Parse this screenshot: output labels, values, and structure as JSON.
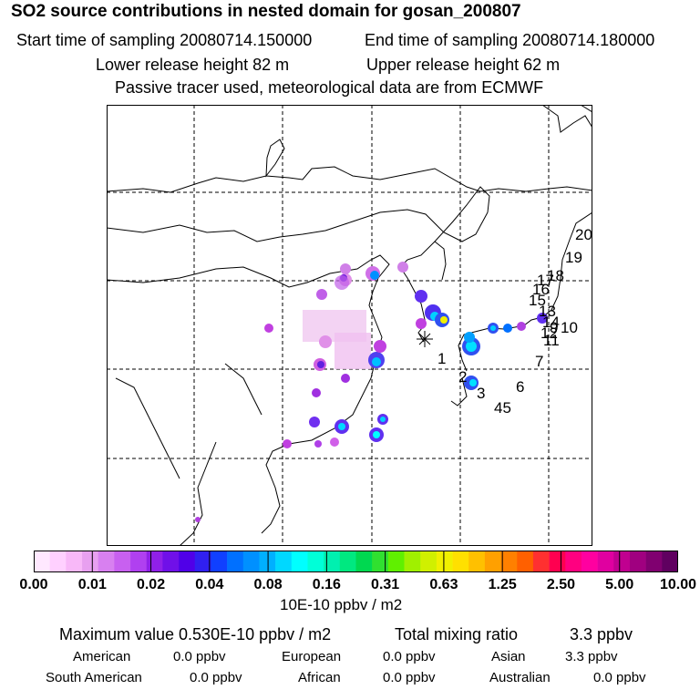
{
  "header": {
    "title": "SO2 source contributions in nested domain for gosan_200807",
    "start": "Start time of sampling 20080714.150000",
    "end": "End time of sampling 20080714.180000",
    "lower": "Lower release height   82 m",
    "upper": "Upper release height   62 m",
    "note": "Passive tracer used, meteorological data are from ECMWF"
  },
  "map": {
    "labels": [
      "1",
      "2",
      "3",
      "45",
      "6",
      "7",
      "12",
      "11",
      "10",
      "9",
      "14",
      "13",
      "15",
      "16",
      "17",
      "18",
      "19",
      "20"
    ]
  },
  "colorbar": {
    "ticks": [
      "0.00",
      "0.01",
      "0.02",
      "0.04",
      "0.08",
      "0.16",
      "0.31",
      "0.63",
      "1.25",
      "2.50",
      "5.00",
      "10.00"
    ],
    "colors": [
      "#ffe8ff",
      "#ffd0ff",
      "#f8b8f8",
      "#e8a0f0",
      "#d880f0",
      "#c860f0",
      "#b040f0",
      "#9020e8",
      "#7010e8",
      "#5000e8",
      "#3020f0",
      "#1040ff",
      "#0070ff",
      "#0090ff",
      "#00b0ff",
      "#00d8ff",
      "#00ffff",
      "#00ffd8",
      "#00f0b0",
      "#00e880",
      "#00d850",
      "#30e030",
      "#60f000",
      "#a0f000",
      "#d0f000",
      "#f0f000",
      "#ffe000",
      "#ffc000",
      "#ffa000",
      "#ff8000",
      "#ff6000",
      "#ff3030",
      "#ff0050",
      "#ff0080",
      "#ff00a0",
      "#e000a0",
      "#c00090",
      "#a00080",
      "#800070",
      "#600060"
    ],
    "unit": "10E-10 ppbv / m2"
  },
  "stats": {
    "max": "Maximum value  0.530E-10 ppbv / m2",
    "total_label": "Total mixing ratio",
    "total_value": "3.3 ppbv",
    "american_label": "American",
    "american_value": "0.0 ppbv",
    "european_label": "European",
    "european_value": "0.0 ppbv",
    "asian_label": "Asian",
    "asian_value": "3.3 ppbv",
    "samerican_label": "South American",
    "samerican_value": "0.0 ppbv",
    "african_label": "African",
    "african_value": "0.0 ppbv",
    "australian_label": "Australian",
    "australian_value": "0.0 ppbv"
  }
}
